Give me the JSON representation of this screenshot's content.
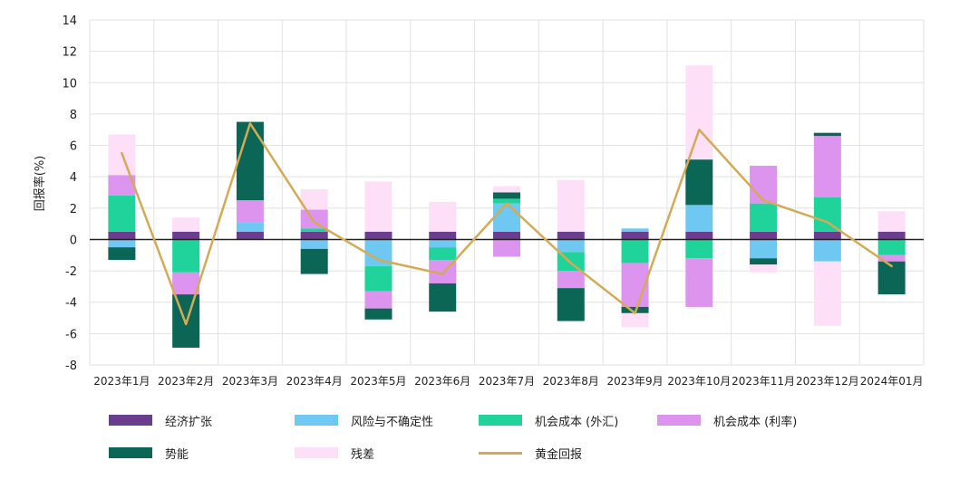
{
  "chart_data": {
    "type": "bar",
    "stacked": true,
    "ylabel": "回报率(%)",
    "xlabel": "",
    "ylim": [
      -8,
      14
    ],
    "yticks": [
      -8,
      -6,
      -4,
      -2,
      0,
      2,
      4,
      6,
      8,
      10,
      12,
      14
    ],
    "grid": true,
    "legend_position": "bottom",
    "categories": [
      "2023年1月",
      "2023年2月",
      "2023年3月",
      "2023年4月",
      "2023年5月",
      "2023年6月",
      "2023年7月",
      "2023年8月",
      "2023年9月",
      "2023年10月",
      "2023年11月",
      "2023年12月",
      "2024年01月"
    ],
    "series": [
      {
        "name": "经济扩张",
        "color": "#6b3d8f",
        "values": [
          0.5,
          0.5,
          0.5,
          0.5,
          0.5,
          0.5,
          0.5,
          0.5,
          0.5,
          0.5,
          0.5,
          0.5,
          0.5
        ]
      },
      {
        "name": "风险与不确定性",
        "color": "#6ec8f2",
        "values": [
          -0.5,
          0,
          0.6,
          -0.6,
          -1.7,
          -0.5,
          1.8,
          -0.8,
          0.2,
          1.7,
          -1.2,
          -1.4,
          0
        ]
      },
      {
        "name": "机会成本 (外汇)",
        "color": "#1fd39b",
        "values": [
          2.3,
          -2.1,
          0,
          0.2,
          -1.6,
          -0.8,
          0.3,
          -1.2,
          -1.5,
          -1.2,
          1.8,
          2.2,
          -1
        ]
      },
      {
        "name": "机会成本 (利率)",
        "color": "#dd94ee",
        "values": [
          1.3,
          -1.4,
          1.4,
          1.2,
          -1.1,
          -1.5,
          -1.1,
          -1.1,
          -2.8,
          -3.1,
          2.4,
          3.9,
          -0.4
        ]
      },
      {
        "name": "势能",
        "color": "#0b6656",
        "values": [
          -0.8,
          -3.4,
          5,
          -1.6,
          -0.7,
          -1.8,
          0.4,
          -2.1,
          -0.4,
          2.9,
          -0.4,
          0.2,
          -2.1
        ]
      },
      {
        "name": "残差",
        "color": "#fde0f7",
        "values": [
          2.6,
          0.9,
          0,
          1.3,
          3.2,
          1.9,
          0.4,
          3.3,
          -0.9,
          6,
          -0.5,
          -4.1,
          1.3
        ]
      }
    ],
    "line": {
      "name": "黄金回报",
      "color": "#d4aa55",
      "values": [
        5.5,
        -5.4,
        7.4,
        1.1,
        -1.3,
        -2.2,
        2.3,
        -1.5,
        -4.7,
        7,
        2.5,
        1.1,
        -1.7
      ]
    }
  }
}
